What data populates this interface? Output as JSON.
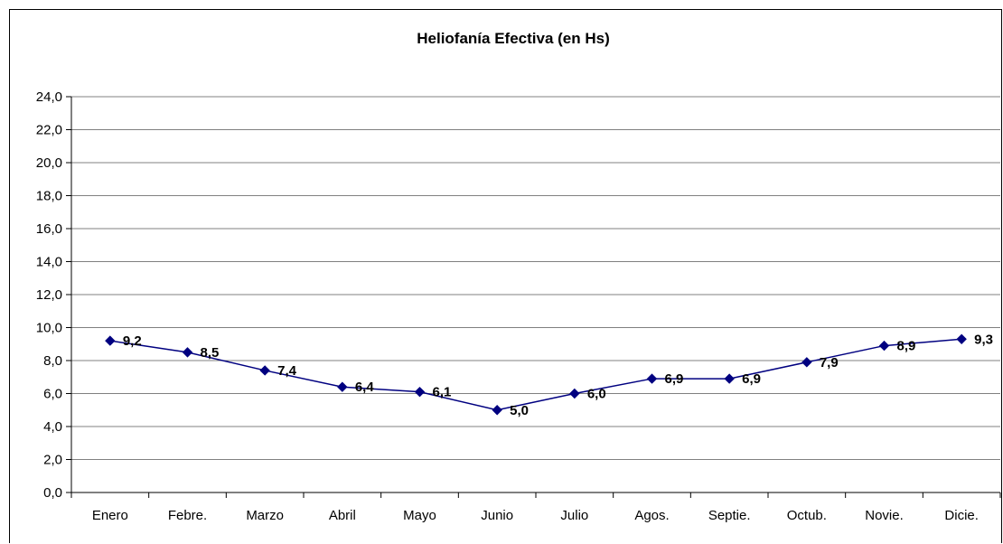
{
  "chart_data": {
    "type": "line",
    "title": "Heliofanía Efectiva (en Hs)",
    "xlabel": "",
    "ylabel": "",
    "categories": [
      "Enero",
      "Febre.",
      "Marzo",
      "Abril",
      "Mayo",
      "Junio",
      "Julio",
      "Agos.",
      "Septie.",
      "Octub.",
      "Novie.",
      "Dicie."
    ],
    "series": [
      {
        "values": [
          9.2,
          8.5,
          7.4,
          6.4,
          6.1,
          5.0,
          6.0,
          6.9,
          6.9,
          7.9,
          8.9,
          9.3
        ],
        "labels": [
          "9,2",
          "8,5",
          "7,4",
          "6,4",
          "6,1",
          "5,0",
          "6,0",
          "6,9",
          "6,9",
          "7,9",
          "8,9",
          "9,3"
        ]
      }
    ],
    "ylim": [
      0,
      24
    ],
    "yticks": [
      "0,0",
      "2,0",
      "4,0",
      "6,0",
      "8,0",
      "10,0",
      "12,0",
      "14,0",
      "16,0",
      "18,0",
      "20,0",
      "22,0",
      "24,0"
    ],
    "grid": true,
    "legend": "none",
    "colors": {
      "line": "#000080",
      "marker": "#000080",
      "grid": "#808080"
    }
  }
}
